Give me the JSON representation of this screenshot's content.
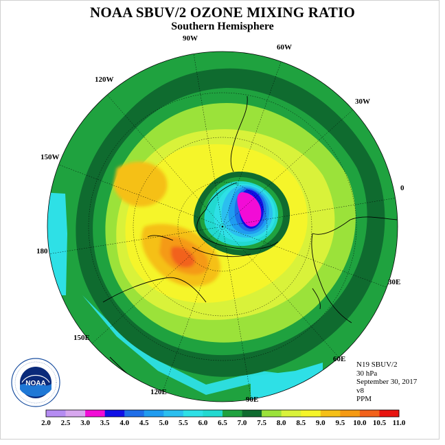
{
  "title": "NOAA SBUV/2 OZONE MIXING RATIO",
  "subtitle": "Southern Hemisphere",
  "longitude_labels": [
    "90W",
    "60W",
    "30W",
    "0",
    "30E",
    "60E",
    "90E",
    "120E",
    "150E",
    "180",
    "150W",
    "120W"
  ],
  "info": {
    "satellite": "N19 SBUV/2",
    "pressure_level": "30 hPa",
    "date": "September 30, 2017",
    "version": "v8",
    "units": "PPM"
  },
  "logo": {
    "text": "NOAA",
    "ring_text": "NATIONAL OCEANIC AND ATMOSPHERIC ADMINISTRATION · U.S. DEPARTMENT OF COMMERCE"
  },
  "colorbar": {
    "ticks": [
      "2.0",
      "2.5",
      "3.0",
      "3.5",
      "4.0",
      "4.5",
      "5.0",
      "5.5",
      "6.0",
      "6.5",
      "7.0",
      "7.5",
      "8.0",
      "8.5",
      "9.0",
      "9.5",
      "10.0",
      "10.5",
      "11.0"
    ],
    "colors": [
      "#b58cf2",
      "#d7a7ee",
      "#f20cd6",
      "#1010e6",
      "#1f6ee8",
      "#1f9cf0",
      "#2bbfef",
      "#2ee0e6",
      "#22d9d0",
      "#1fa23f",
      "#0f6b2f",
      "#9be23a",
      "#d9f23a",
      "#f5f52a",
      "#f5c018",
      "#f59a12",
      "#f2621b",
      "#e8140f",
      "#8a4f2f"
    ]
  }
}
